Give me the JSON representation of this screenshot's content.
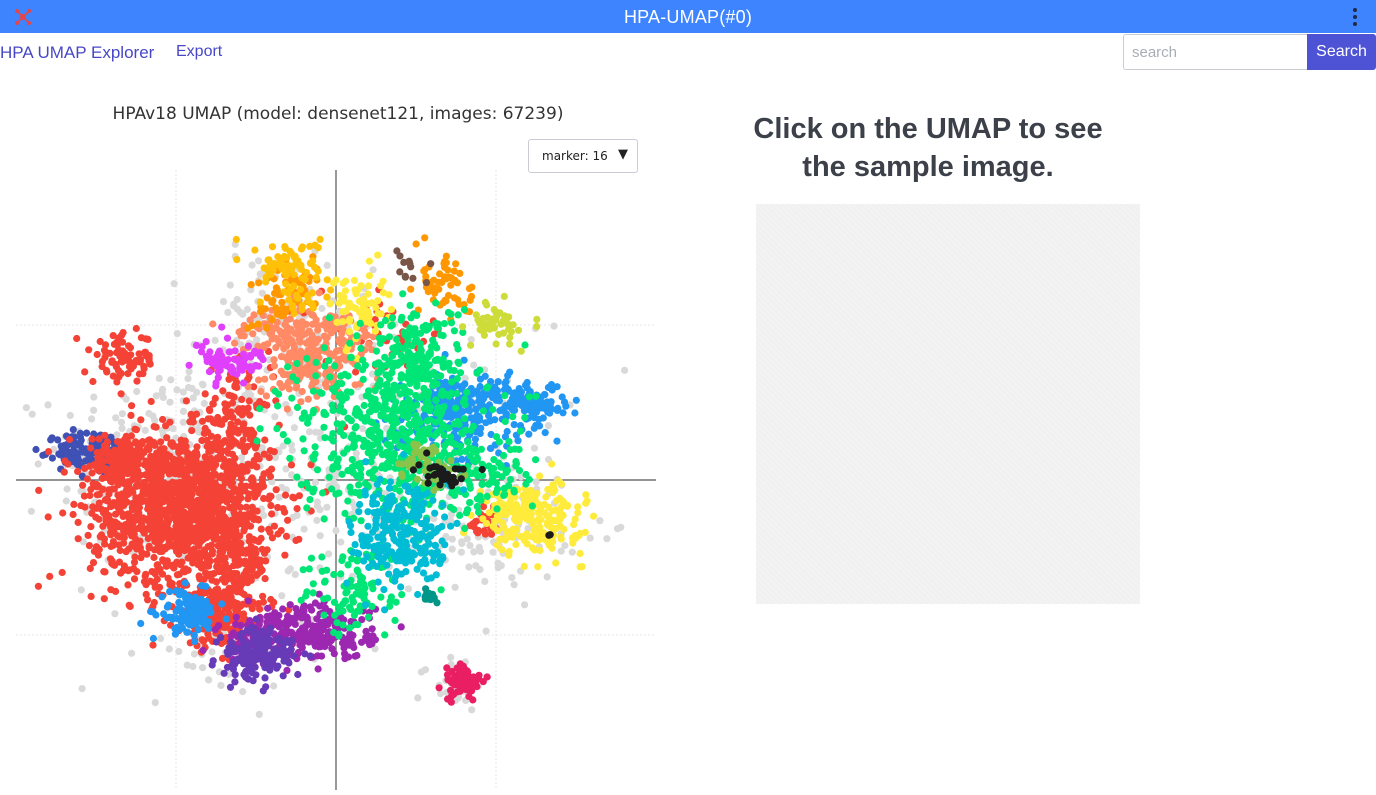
{
  "window": {
    "title": "HPA-UMAP(#0)",
    "app_icon": "puzzle-icon",
    "menu_icon": "vertical-dots-icon"
  },
  "navbar": {
    "brand": "HPA UMAP Explorer",
    "export_label": "Export",
    "search_placeholder": "search",
    "search_value": "",
    "search_button": "Search"
  },
  "plot": {
    "title": "HPAv18 UMAP (model: densenet121, images: 67239)",
    "marker_select": {
      "value": "marker: 16",
      "icon": "caret-down-icon"
    }
  },
  "sample_panel": {
    "hint": "Click on the UMAP to see the sample image."
  },
  "colors": {
    "titlebar": "#3e84ff",
    "link": "#4747c7",
    "search_button": "#4e53d6",
    "unlabeled_points": "#d3d3d3"
  },
  "chart_data": {
    "type": "scatter",
    "title": "HPAv18 UMAP (model: densenet121, images: 67239)",
    "xlabel": "",
    "ylabel": "",
    "xlim": [
      -10,
      10
    ],
    "ylim": [
      -10,
      10
    ],
    "grid": true,
    "legend": "none",
    "series": [
      {
        "color": "#d9d9d9",
        "clusters": [
          {
            "cx": -5.3,
            "cy": 0.4,
            "sx": 1.7,
            "sy": 1.7,
            "n": 260
          },
          {
            "cx": 1.2,
            "cy": 0.6,
            "sx": 2.6,
            "sy": 2.2,
            "n": 320
          },
          {
            "cx": 5.3,
            "cy": -1.4,
            "sx": 1.2,
            "sy": 0.9,
            "n": 90
          },
          {
            "cx": -1.7,
            "cy": 5.2,
            "sx": 1.4,
            "sy": 1.0,
            "n": 110
          },
          {
            "cx": -3.6,
            "cy": -5.2,
            "sx": 1.3,
            "sy": 0.9,
            "n": 70
          },
          {
            "cx": 3.6,
            "cy": -6.6,
            "sx": 0.5,
            "sy": 0.4,
            "n": 25
          },
          {
            "cx": -7.1,
            "cy": 1.0,
            "sx": 0.9,
            "sy": 0.5,
            "n": 35
          }
        ]
      },
      {
        "color": "#3f51b5",
        "clusters": [
          {
            "cx": -7.5,
            "cy": 0.9,
            "sx": 0.6,
            "sy": 0.35,
            "n": 120
          },
          {
            "cx": -8.3,
            "cy": 0.9,
            "sx": 0.2,
            "sy": 0.25,
            "n": 30
          }
        ]
      },
      {
        "color": "#f44336",
        "clusters": [
          {
            "cx": -4.8,
            "cy": -0.9,
            "sx": 1.4,
            "sy": 1.2,
            "n": 1300
          },
          {
            "cx": -3.6,
            "cy": -4.3,
            "sx": 0.7,
            "sy": 0.6,
            "n": 220
          },
          {
            "cx": -6.5,
            "cy": 0.6,
            "sx": 0.9,
            "sy": 0.4,
            "n": 150
          },
          {
            "cx": -3.2,
            "cy": 1.6,
            "sx": 0.6,
            "sy": 0.9,
            "n": 140
          },
          {
            "cx": -6.6,
            "cy": 3.9,
            "sx": 0.5,
            "sy": 0.4,
            "n": 90
          },
          {
            "cx": -3.1,
            "cy": -2.7,
            "sx": 0.5,
            "sy": 0.5,
            "n": 90
          },
          {
            "cx": 4.7,
            "cy": -1.4,
            "sx": 0.25,
            "sy": 0.3,
            "n": 30
          },
          {
            "cx": 1.5,
            "cy": 4.7,
            "sx": 1.0,
            "sy": 0.6,
            "n": 40
          }
        ]
      },
      {
        "color": "#2196f3",
        "clusters": [
          {
            "cx": -4.6,
            "cy": -4.3,
            "sx": 0.45,
            "sy": 0.35,
            "n": 110
          },
          {
            "cx": 4.3,
            "cy": 2.4,
            "sx": 1.0,
            "sy": 0.55,
            "n": 200
          },
          {
            "cx": 6.2,
            "cy": 2.5,
            "sx": 0.5,
            "sy": 0.3,
            "n": 80
          },
          {
            "cx": 3.2,
            "cy": 1.7,
            "sx": 0.8,
            "sy": 0.6,
            "n": 80
          }
        ]
      },
      {
        "color": "#9c27b0",
        "clusters": [
          {
            "cx": -0.4,
            "cy": -4.9,
            "sx": 0.8,
            "sy": 0.45,
            "n": 200
          },
          {
            "cx": -2.3,
            "cy": -5.0,
            "sx": 0.7,
            "sy": 0.4,
            "n": 80
          }
        ]
      },
      {
        "color": "#673ab7",
        "clusters": [
          {
            "cx": -2.6,
            "cy": -5.8,
            "sx": 0.55,
            "sy": 0.35,
            "n": 120
          },
          {
            "cx": -2.2,
            "cy": -5.3,
            "sx": 0.5,
            "sy": 0.3,
            "n": 50
          }
        ]
      },
      {
        "color": "#e91e63",
        "clusters": [
          {
            "cx": 4.0,
            "cy": -6.5,
            "sx": 0.3,
            "sy": 0.3,
            "n": 70
          }
        ]
      },
      {
        "color": "#ff8a65",
        "clusters": [
          {
            "cx": -0.4,
            "cy": 4.2,
            "sx": 0.9,
            "sy": 0.6,
            "n": 170
          },
          {
            "cx": -1.8,
            "cy": 4.9,
            "sx": 0.7,
            "sy": 0.4,
            "n": 70
          },
          {
            "cx": -1.0,
            "cy": 3.4,
            "sx": 0.6,
            "sy": 0.4,
            "n": 60
          }
        ]
      },
      {
        "color": "#ffeb3b",
        "clusters": [
          {
            "cx": 6.2,
            "cy": -1.3,
            "sx": 0.75,
            "sy": 0.55,
            "n": 200
          },
          {
            "cx": 5.4,
            "cy": -0.7,
            "sx": 0.4,
            "sy": 0.3,
            "n": 40
          },
          {
            "cx": 0.7,
            "cy": 5.6,
            "sx": 0.45,
            "sy": 0.6,
            "n": 70
          }
        ]
      },
      {
        "color": "#ff9800",
        "clusters": [
          {
            "cx": -1.4,
            "cy": 6.3,
            "sx": 0.4,
            "sy": 0.35,
            "n": 45
          },
          {
            "cx": 3.5,
            "cy": 6.3,
            "sx": 0.4,
            "sy": 0.65,
            "n": 55
          },
          {
            "cx": -1.9,
            "cy": 5.6,
            "sx": 0.35,
            "sy": 0.35,
            "n": 25
          }
        ]
      },
      {
        "color": "#ffc107",
        "clusters": [
          {
            "cx": -1.5,
            "cy": 7.0,
            "sx": 0.5,
            "sy": 0.35,
            "n": 60
          },
          {
            "cx": -1.0,
            "cy": 6.0,
            "sx": 0.5,
            "sy": 0.5,
            "n": 30
          }
        ]
      },
      {
        "color": "#00e676",
        "clusters": [
          {
            "cx": 1.8,
            "cy": 1.6,
            "sx": 1.5,
            "sy": 1.5,
            "n": 620
          },
          {
            "cx": 2.5,
            "cy": 4.1,
            "sx": 0.7,
            "sy": 0.8,
            "n": 130
          },
          {
            "cx": 0.6,
            "cy": -3.7,
            "sx": 0.8,
            "sy": 0.7,
            "n": 90
          },
          {
            "cx": 4.4,
            "cy": 0.1,
            "sx": 0.9,
            "sy": 0.5,
            "n": 80
          }
        ]
      },
      {
        "color": "#00bcd4",
        "clusters": [
          {
            "cx": 2.1,
            "cy": -1.7,
            "sx": 0.8,
            "sy": 0.9,
            "n": 260
          }
        ]
      },
      {
        "color": "#e040fb",
        "clusters": [
          {
            "cx": -3.4,
            "cy": 3.8,
            "sx": 0.4,
            "sy": 0.3,
            "n": 60
          },
          {
            "cx": -2.6,
            "cy": 3.8,
            "sx": 0.2,
            "sy": 0.2,
            "n": 15
          }
        ]
      },
      {
        "color": "#cddc39",
        "clusters": [
          {
            "cx": 5.0,
            "cy": 5.0,
            "sx": 0.4,
            "sy": 0.35,
            "n": 50
          }
        ]
      },
      {
        "color": "#8bc34a",
        "clusters": [
          {
            "cx": 2.8,
            "cy": 0.5,
            "sx": 0.5,
            "sy": 0.4,
            "n": 50
          }
        ]
      },
      {
        "color": "#009688",
        "clusters": [
          {
            "cx": 2.9,
            "cy": -3.8,
            "sx": 0.12,
            "sy": 0.1,
            "n": 12
          }
        ]
      },
      {
        "color": "#1b1b1b",
        "clusters": [
          {
            "cx": 3.3,
            "cy": 0.2,
            "sx": 0.4,
            "sy": 0.2,
            "n": 35
          },
          {
            "cx": 6.7,
            "cy": -1.7,
            "sx": 0.05,
            "sy": 0.05,
            "n": 2
          }
        ]
      },
      {
        "color": "#795548",
        "clusters": [
          {
            "cx": 2.3,
            "cy": 7.0,
            "sx": 0.2,
            "sy": 0.3,
            "n": 12
          }
        ]
      }
    ]
  }
}
